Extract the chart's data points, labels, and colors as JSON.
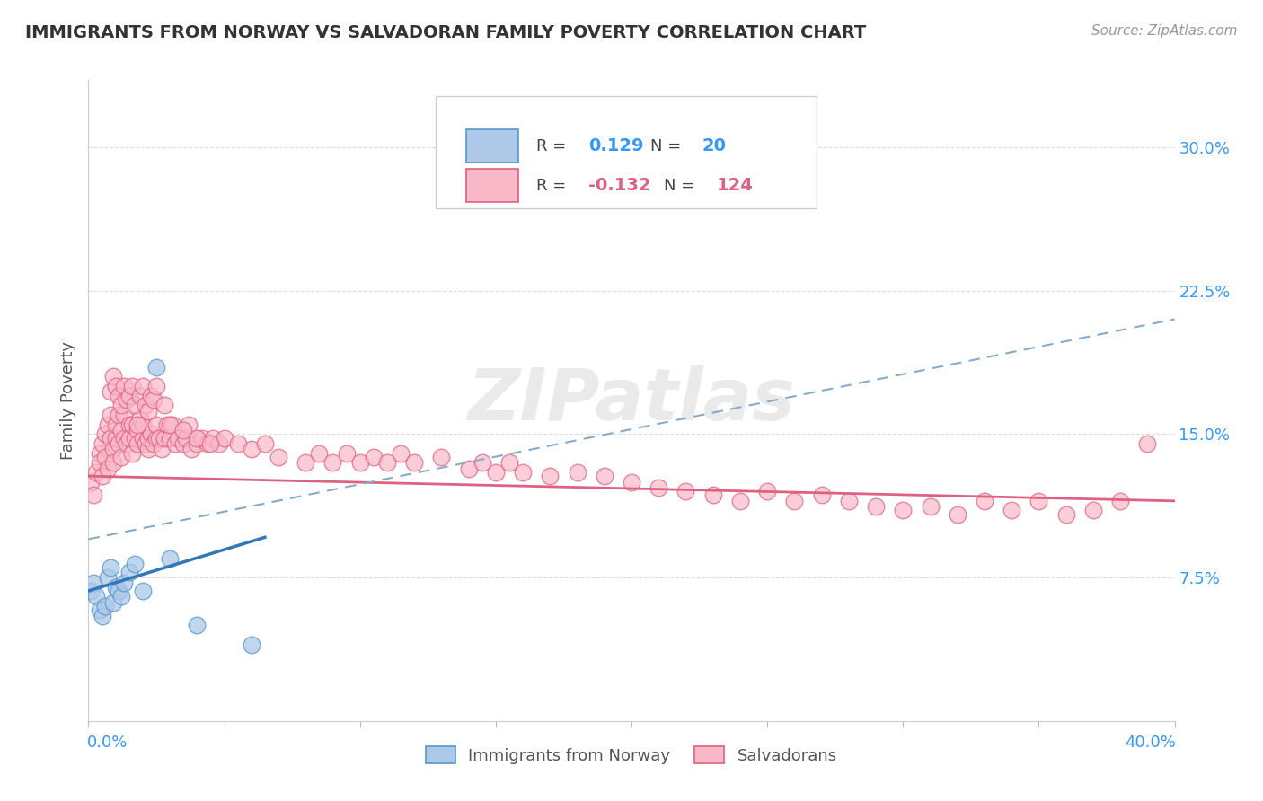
{
  "title": "IMMIGRANTS FROM NORWAY VS SALVADORAN FAMILY POVERTY CORRELATION CHART",
  "source": "Source: ZipAtlas.com",
  "ylabel": "Family Poverty",
  "y_tick_labels": [
    "7.5%",
    "15.0%",
    "22.5%",
    "30.0%"
  ],
  "y_tick_values": [
    0.075,
    0.15,
    0.225,
    0.3
  ],
  "x_min": 0.0,
  "x_max": 0.4,
  "y_min": 0.0,
  "y_max": 0.335,
  "color_norway_fill": "#adc8e8",
  "color_norway_edge": "#5599cc",
  "color_salv_fill": "#f8b8c8",
  "color_salv_edge": "#e06080",
  "color_norway_line": "#3377bb",
  "color_salv_line": "#e06080",
  "color_dashed_line": "#88aacc",
  "background_color": "#ffffff",
  "norway_x": [
    0.001,
    0.002,
    0.003,
    0.004,
    0.005,
    0.006,
    0.007,
    0.008,
    0.009,
    0.01,
    0.011,
    0.012,
    0.013,
    0.015,
    0.017,
    0.02,
    0.025,
    0.03,
    0.04,
    0.06
  ],
  "norway_y": [
    0.068,
    0.072,
    0.065,
    0.058,
    0.055,
    0.06,
    0.075,
    0.08,
    0.062,
    0.07,
    0.068,
    0.065,
    0.072,
    0.078,
    0.082,
    0.068,
    0.185,
    0.085,
    0.05,
    0.04
  ],
  "salv_x": [
    0.001,
    0.002,
    0.003,
    0.004,
    0.004,
    0.005,
    0.005,
    0.006,
    0.006,
    0.007,
    0.007,
    0.008,
    0.008,
    0.009,
    0.009,
    0.01,
    0.01,
    0.011,
    0.011,
    0.012,
    0.012,
    0.013,
    0.013,
    0.014,
    0.015,
    0.015,
    0.016,
    0.016,
    0.017,
    0.018,
    0.018,
    0.019,
    0.02,
    0.02,
    0.021,
    0.022,
    0.022,
    0.023,
    0.024,
    0.025,
    0.025,
    0.026,
    0.027,
    0.028,
    0.029,
    0.03,
    0.031,
    0.032,
    0.033,
    0.035,
    0.036,
    0.037,
    0.038,
    0.04,
    0.042,
    0.044,
    0.046,
    0.048,
    0.05,
    0.055,
    0.06,
    0.065,
    0.07,
    0.08,
    0.085,
    0.09,
    0.095,
    0.1,
    0.105,
    0.11,
    0.115,
    0.12,
    0.13,
    0.14,
    0.145,
    0.15,
    0.155,
    0.16,
    0.17,
    0.18,
    0.19,
    0.2,
    0.21,
    0.22,
    0.23,
    0.24,
    0.25,
    0.26,
    0.27,
    0.28,
    0.29,
    0.3,
    0.31,
    0.32,
    0.33,
    0.34,
    0.35,
    0.36,
    0.37,
    0.38,
    0.39,
    0.008,
    0.009,
    0.01,
    0.011,
    0.012,
    0.013,
    0.014,
    0.015,
    0.016,
    0.017,
    0.018,
    0.019,
    0.02,
    0.021,
    0.022,
    0.023,
    0.024,
    0.025,
    0.028,
    0.03,
    0.035,
    0.04,
    0.045
  ],
  "salv_y": [
    0.125,
    0.118,
    0.13,
    0.14,
    0.135,
    0.145,
    0.128,
    0.15,
    0.138,
    0.155,
    0.132,
    0.148,
    0.16,
    0.142,
    0.135,
    0.148,
    0.155,
    0.16,
    0.145,
    0.152,
    0.138,
    0.148,
    0.16,
    0.145,
    0.155,
    0.148,
    0.155,
    0.14,
    0.148,
    0.152,
    0.145,
    0.158,
    0.148,
    0.155,
    0.145,
    0.142,
    0.148,
    0.15,
    0.145,
    0.148,
    0.155,
    0.148,
    0.142,
    0.148,
    0.155,
    0.148,
    0.155,
    0.145,
    0.148,
    0.145,
    0.148,
    0.155,
    0.142,
    0.145,
    0.148,
    0.145,
    0.148,
    0.145,
    0.148,
    0.145,
    0.142,
    0.145,
    0.138,
    0.135,
    0.14,
    0.135,
    0.14,
    0.135,
    0.138,
    0.135,
    0.14,
    0.135,
    0.138,
    0.132,
    0.135,
    0.13,
    0.135,
    0.13,
    0.128,
    0.13,
    0.128,
    0.125,
    0.122,
    0.12,
    0.118,
    0.115,
    0.12,
    0.115,
    0.118,
    0.115,
    0.112,
    0.11,
    0.112,
    0.108,
    0.115,
    0.11,
    0.115,
    0.108,
    0.11,
    0.115,
    0.145,
    0.172,
    0.18,
    0.175,
    0.17,
    0.165,
    0.175,
    0.168,
    0.17,
    0.175,
    0.165,
    0.155,
    0.17,
    0.175,
    0.165,
    0.162,
    0.17,
    0.168,
    0.175,
    0.165,
    0.155,
    0.152,
    0.148,
    0.145
  ]
}
